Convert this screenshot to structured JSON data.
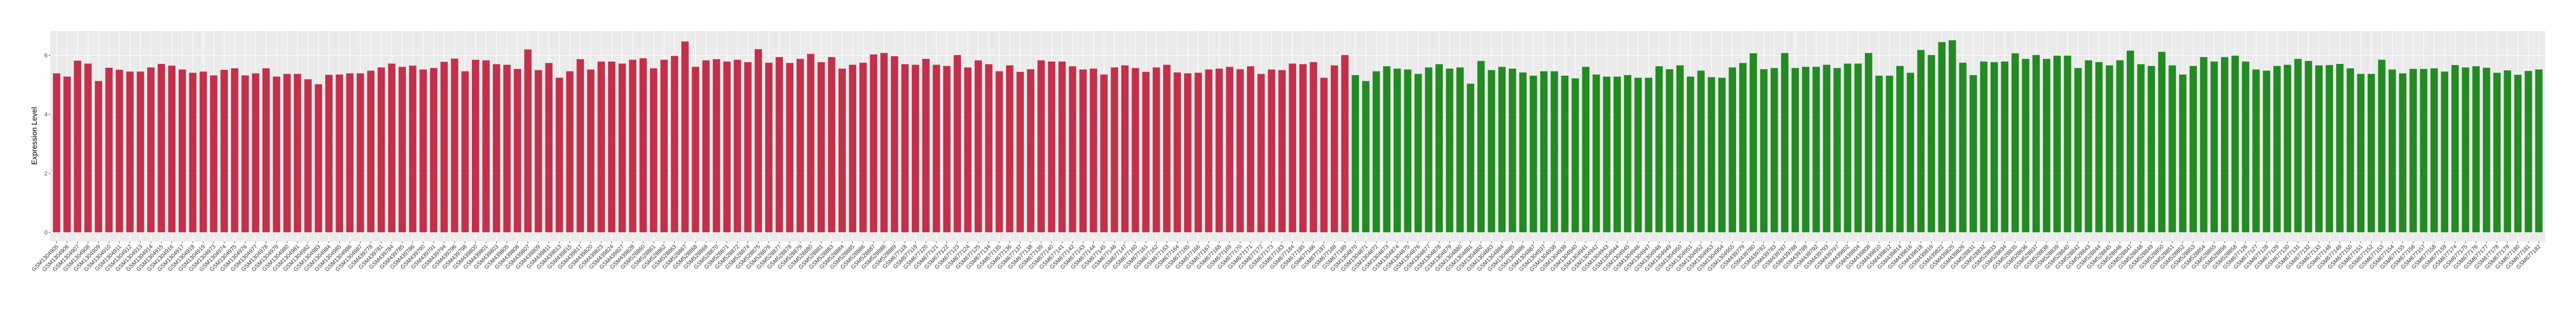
{
  "chart_data": {
    "type": "bar",
    "title": "",
    "xlabel": "",
    "ylabel": "Expression Level",
    "ylim": [
      -0.31,
      6.83
    ],
    "yticks": [
      0,
      2,
      4,
      6
    ],
    "grid": true,
    "legend": "none",
    "panel_background": "#EBEBEB",
    "grid_color": "#FFFFFF",
    "series": [
      {
        "color": "#C3304A",
        "categories": [
          "GSM1304905",
          "GSM1304906",
          "GSM1304907",
          "GSM1304908",
          "GSM1304909",
          "GSM1304910",
          "GSM1304911",
          "GSM1304912",
          "GSM1304913",
          "GSM1304914",
          "GSM1304915",
          "GSM1304916",
          "GSM1304917",
          "GSM1304918",
          "GSM1304919",
          "GSM1304973",
          "GSM1304974",
          "GSM1304975",
          "GSM1304976",
          "GSM1304977",
          "GSM1304978",
          "GSM1304979",
          "GSM1304980",
          "GSM1304981",
          "GSM1304982",
          "GSM1304983",
          "GSM1304984",
          "GSM1304985",
          "GSM1304986",
          "GSM1304987",
          "GSM439778",
          "GSM439781",
          "GSM439784",
          "GSM439785",
          "GSM439786",
          "GSM439790",
          "GSM439791",
          "GSM439794",
          "GSM439796",
          "GSM439798",
          "GSM439800",
          "GSM439801",
          "GSM439803",
          "GSM439805",
          "GSM439806",
          "GSM439807",
          "GSM439809",
          "GSM439811",
          "GSM439813",
          "GSM439815",
          "GSM439817",
          "GSM439820",
          "GSM439823",
          "GSM439824",
          "GSM439827",
          "GSM439828",
          "GSM528860",
          "GSM528861",
          "GSM528862",
          "GSM528863",
          "GSM528867",
          "GSM528868",
          "GSM528869",
          "GSM528870",
          "GSM528871",
          "GSM528872",
          "GSM528874",
          "GSM528875",
          "GSM528876",
          "GSM528877",
          "GSM528878",
          "GSM528879",
          "GSM528880",
          "GSM528881",
          "GSM528883",
          "GSM528884",
          "GSM528885",
          "GSM528886",
          "GSM528887",
          "GSM528888",
          "GSM528889",
          "GSM677118",
          "GSM677119",
          "GSM677120",
          "GSM677121",
          "GSM677122",
          "GSM677123",
          "GSM677124",
          "GSM677125",
          "GSM677134",
          "GSM677135",
          "GSM677136",
          "GSM677137",
          "GSM677138",
          "GSM677139",
          "GSM677140",
          "GSM677141",
          "GSM677142",
          "GSM677143",
          "GSM677144",
          "GSM677145",
          "GSM677146",
          "GSM677147",
          "GSM677160",
          "GSM677161",
          "GSM677162",
          "GSM677163",
          "GSM677164",
          "GSM677165",
          "GSM677166",
          "GSM677167",
          "GSM677168",
          "GSM677169",
          "GSM677170",
          "GSM677171",
          "GSM677172",
          "GSM677173",
          "GSM677183",
          "GSM677184",
          "GSM677185",
          "GSM677186",
          "GSM677187",
          "GSM677188",
          "GSM677189"
        ],
        "values": [
          5.39,
          5.28,
          5.82,
          5.72,
          5.13,
          5.58,
          5.51,
          5.45,
          5.45,
          5.59,
          5.71,
          5.65,
          5.52,
          5.41,
          5.45,
          5.32,
          5.51,
          5.56,
          5.32,
          5.39,
          5.56,
          5.28,
          5.37,
          5.37,
          5.19,
          5.02,
          5.34,
          5.35,
          5.39,
          5.39,
          5.48,
          5.59,
          5.72,
          5.61,
          5.65,
          5.52,
          5.57,
          5.78,
          5.89,
          5.46,
          5.85,
          5.83,
          5.7,
          5.68,
          5.54,
          6.2,
          5.5,
          5.74,
          5.24,
          5.46,
          5.87,
          5.52,
          5.79,
          5.79,
          5.72,
          5.85,
          5.9,
          5.56,
          5.85,
          5.98,
          6.47,
          5.61,
          5.83,
          5.87,
          5.79,
          5.85,
          5.77,
          6.21,
          5.75,
          5.94,
          5.74,
          5.88,
          6.05,
          5.77,
          5.94,
          5.55,
          5.68,
          5.75,
          6.03,
          6.08,
          5.97,
          5.7,
          5.68,
          5.88,
          5.68,
          5.64,
          6.01,
          5.59,
          5.83,
          5.7,
          5.46,
          5.66,
          5.44,
          5.53,
          5.83,
          5.79,
          5.79,
          5.63,
          5.52,
          5.55,
          5.35,
          5.59,
          5.66,
          5.57,
          5.44,
          5.59,
          5.68,
          5.42,
          5.39,
          5.41,
          5.52,
          5.55,
          5.61,
          5.53,
          5.63,
          5.37,
          5.52,
          5.5,
          5.72,
          5.7,
          5.77,
          5.24,
          5.66,
          6.01
        ]
      },
      {
        "color": "#228B22",
        "categories": [
          "GSM1304870",
          "GSM1304871",
          "GSM1304872",
          "GSM1304873",
          "GSM1304874",
          "GSM1304875",
          "GSM1304876",
          "GSM1304877",
          "GSM1304878",
          "GSM1304879",
          "GSM1304880",
          "GSM1304881",
          "GSM1304882",
          "GSM1304883",
          "GSM1304884",
          "GSM1304885",
          "GSM1304886",
          "GSM1304887",
          "GSM1304937",
          "GSM1304938",
          "GSM1304939",
          "GSM1304940",
          "GSM1304941",
          "GSM1304942",
          "GSM1304943",
          "GSM1304944",
          "GSM1304945",
          "GSM1304946",
          "GSM1304947",
          "GSM1304948",
          "GSM1304949",
          "GSM1304950",
          "GSM1304951",
          "GSM1304952",
          "GSM1304953",
          "GSM1304954",
          "GSM1304955",
          "GSM439779",
          "GSM439780",
          "GSM439782",
          "GSM439783",
          "GSM439787",
          "GSM439788",
          "GSM439789",
          "GSM439792",
          "GSM439793",
          "GSM439797",
          "GSM439802",
          "GSM439804",
          "GSM439808",
          "GSM439810",
          "GSM439812",
          "GSM439814",
          "GSM439816",
          "GSM439818",
          "GSM439819",
          "GSM439822",
          "GSM439825",
          "GSM439826",
          "GSM528831",
          "GSM528832",
          "GSM528833",
          "GSM528834",
          "GSM528835",
          "GSM528836",
          "GSM528837",
          "GSM528838",
          "GSM528839",
          "GSM528840",
          "GSM528842",
          "GSM528843",
          "GSM528844",
          "GSM528845",
          "GSM528846",
          "GSM528847",
          "GSM528848",
          "GSM528849",
          "GSM528850",
          "GSM528851",
          "GSM528852",
          "GSM528853",
          "GSM528854",
          "GSM528855",
          "GSM528856",
          "GSM528858",
          "GSM677126",
          "GSM677127",
          "GSM677128",
          "GSM677129",
          "GSM677130",
          "GSM677131",
          "GSM677132",
          "GSM677133",
          "GSM677148",
          "GSM677149",
          "GSM677150",
          "GSM677151",
          "GSM677152",
          "GSM677153",
          "GSM677154",
          "GSM677155",
          "GSM677156",
          "GSM677157",
          "GSM677158",
          "GSM677159",
          "GSM677174",
          "GSM677175",
          "GSM677176",
          "GSM677177",
          "GSM677178",
          "GSM677179",
          "GSM677180",
          "GSM677181",
          "GSM677182"
        ],
        "values": [
          5.33,
          5.13,
          5.46,
          5.63,
          5.55,
          5.52,
          5.37,
          5.59,
          5.7,
          5.55,
          5.59,
          5.04,
          5.81,
          5.5,
          5.61,
          5.55,
          5.42,
          5.31,
          5.46,
          5.46,
          5.31,
          5.22,
          5.61,
          5.35,
          5.28,
          5.28,
          5.33,
          5.24,
          5.24,
          5.63,
          5.53,
          5.66,
          5.28,
          5.48,
          5.26,
          5.24,
          5.59,
          5.74,
          6.07,
          5.53,
          5.57,
          6.08,
          5.57,
          5.61,
          5.61,
          5.68,
          5.57,
          5.72,
          5.72,
          6.08,
          5.31,
          5.31,
          5.64,
          5.41,
          6.18,
          6.01,
          6.45,
          6.51,
          5.75,
          5.33,
          5.79,
          5.77,
          5.79,
          6.07,
          5.88,
          6.01,
          5.88,
          5.99,
          5.99,
          5.57,
          5.83,
          5.77,
          5.66,
          5.83,
          6.16,
          5.7,
          5.64,
          6.12,
          5.66,
          5.35,
          5.64,
          5.94,
          5.79,
          5.94,
          5.99,
          5.79,
          5.52,
          5.48,
          5.64,
          5.68,
          5.88,
          5.81,
          5.66,
          5.67,
          5.71,
          5.56,
          5.37,
          5.37,
          5.85,
          5.52,
          5.39,
          5.54,
          5.54,
          5.56,
          5.45,
          5.67,
          5.59,
          5.63,
          5.58,
          5.41,
          5.49,
          5.34,
          5.47,
          5.52
        ]
      }
    ]
  }
}
